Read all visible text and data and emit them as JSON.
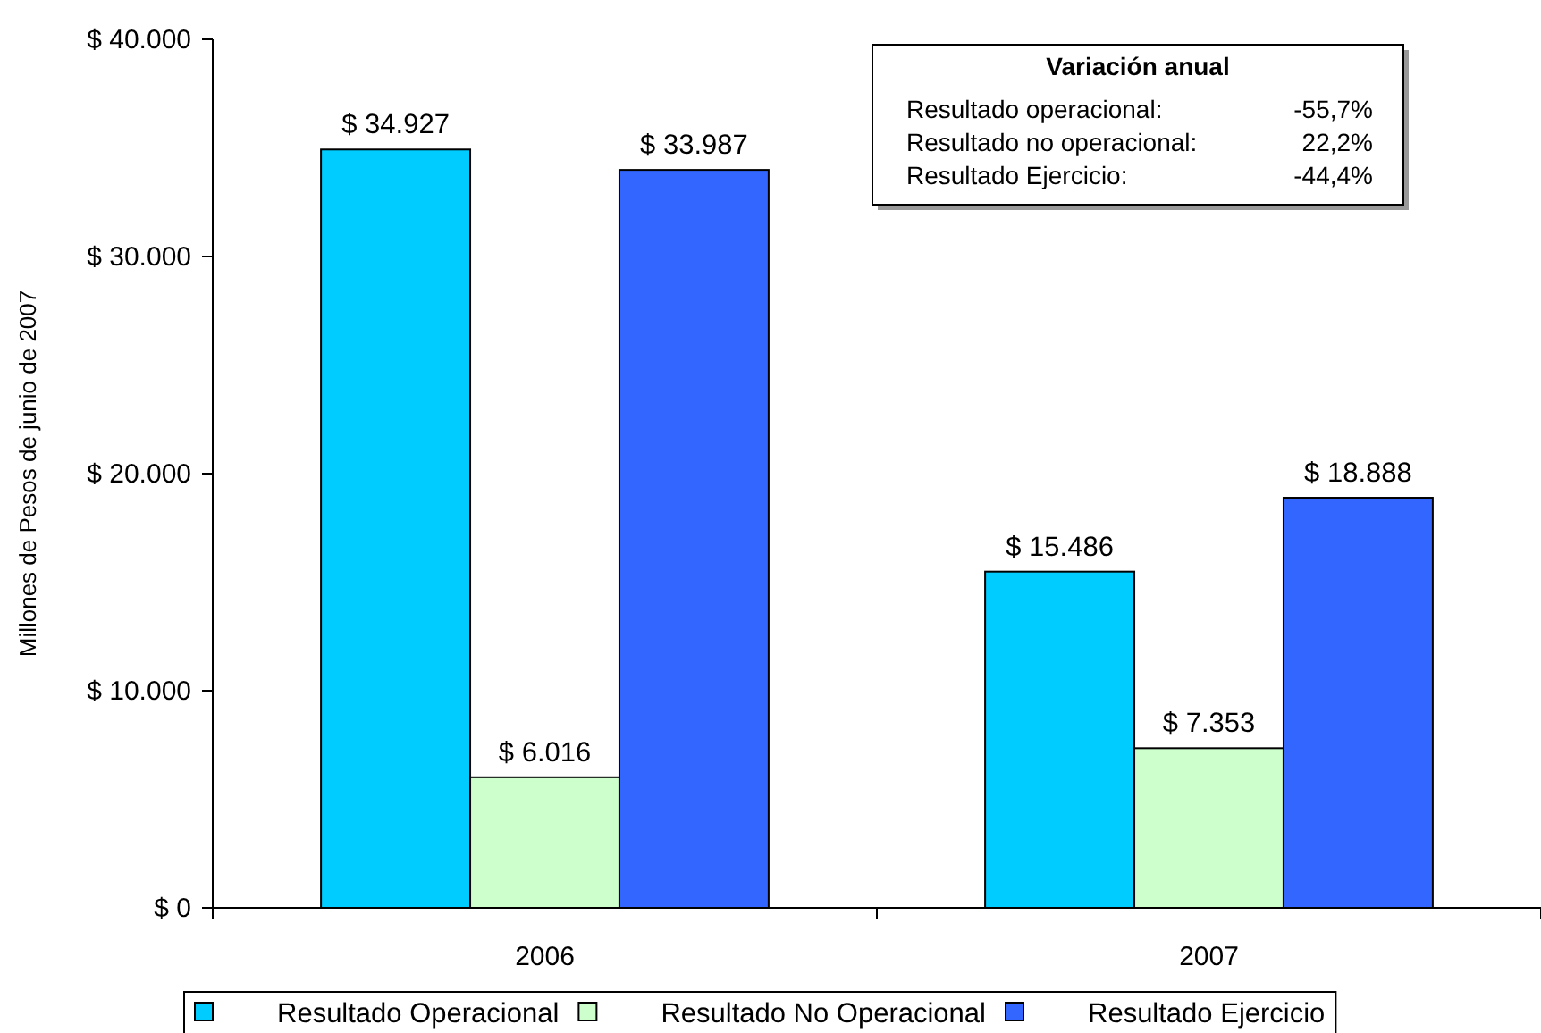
{
  "chart_data": {
    "type": "bar",
    "categories": [
      "2006",
      "2007"
    ],
    "series": [
      {
        "name": "Resultado Operacional",
        "color": "#00ccff",
        "values": [
          34927,
          15486
        ],
        "value_labels": [
          "$ 34.927",
          "$ 15.486"
        ]
      },
      {
        "name": "Resultado No Operacional",
        "color": "#ccffcc",
        "values": [
          6016,
          7353
        ],
        "value_labels": [
          "$ 6.016",
          "$ 7.353"
        ]
      },
      {
        "name": "Resultado Ejercicio",
        "color": "#3366ff",
        "values": [
          33987,
          18888
        ],
        "value_labels": [
          "$ 33.987",
          "$ 18.888"
        ]
      }
    ],
    "ylabel": "Millones de Pesos de junio de 2007",
    "ylim": [
      0,
      40000
    ],
    "yticks": [
      {
        "value": 0,
        "label": "$ 0"
      },
      {
        "value": 10000,
        "label": "$ 10.000"
      },
      {
        "value": 20000,
        "label": "$ 20.000"
      },
      {
        "value": 30000,
        "label": "$ 30.000"
      },
      {
        "value": 40000,
        "label": "$ 40.000"
      }
    ],
    "legend": "bottom",
    "annotations": [
      "Variación anual",
      "Resultado operacional:",
      "-55,7%",
      "Resultado no operacional:",
      "22,2%",
      "Resultado Ejercicio:",
      "-44,4%"
    ]
  }
}
